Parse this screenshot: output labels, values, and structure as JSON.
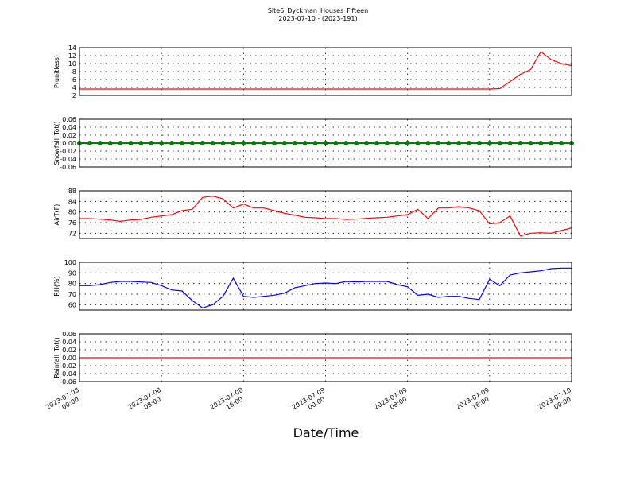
{
  "title": "Site6_Dyckman_Houses_Fifteen",
  "subtitle": "2023-07-10 - (2023-191)",
  "x_label": "Date/Time",
  "chart_data": [
    {
      "type": "line",
      "y_label": "P(unitless)",
      "grid": true,
      "x": [
        "2023-07-08 00:00",
        "2023-07-08 01:00",
        "2023-07-08 02:00",
        "2023-07-08 03:00",
        "2023-07-08 04:00",
        "2023-07-08 05:00",
        "2023-07-08 06:00",
        "2023-07-08 07:00",
        "2023-07-08 08:00",
        "2023-07-08 09:00",
        "2023-07-08 10:00",
        "2023-07-08 11:00",
        "2023-07-08 12:00",
        "2023-07-08 13:00",
        "2023-07-08 14:00",
        "2023-07-08 15:00",
        "2023-07-08 16:00",
        "2023-07-08 17:00",
        "2023-07-08 18:00",
        "2023-07-08 19:00",
        "2023-07-08 20:00",
        "2023-07-08 21:00",
        "2023-07-08 22:00",
        "2023-07-08 23:00",
        "2023-07-09 00:00",
        "2023-07-09 01:00",
        "2023-07-09 02:00",
        "2023-07-09 03:00",
        "2023-07-09 04:00",
        "2023-07-09 05:00",
        "2023-07-09 06:00",
        "2023-07-09 07:00",
        "2023-07-09 08:00",
        "2023-07-09 09:00",
        "2023-07-09 10:00",
        "2023-07-09 11:00",
        "2023-07-09 12:00",
        "2023-07-09 13:00",
        "2023-07-09 14:00",
        "2023-07-09 15:00",
        "2023-07-09 16:00",
        "2023-07-09 17:00",
        "2023-07-09 18:00",
        "2023-07-09 19:00",
        "2023-07-09 20:00",
        "2023-07-09 21:00",
        "2023-07-09 22:00",
        "2023-07-09 23:00",
        "2023-07-10 00:00"
      ],
      "xlim": [
        "2023-07-08 00:00",
        "2023-07-10 00:00"
      ],
      "xticks": [
        "2023-07-08 00:00",
        "2023-07-08 08:00",
        "2023-07-08 16:00",
        "2023-07-09 00:00",
        "2023-07-09 08:00",
        "2023-07-09 16:00",
        "2023-07-10 00:00"
      ],
      "ylim": [
        2,
        14
      ],
      "yticks": [
        2,
        4,
        6,
        8,
        10,
        12,
        14
      ],
      "series": [
        {
          "color": "#ff0000",
          "values": [
            3.6,
            3.6,
            3.6,
            3.6,
            3.6,
            3.6,
            3.6,
            3.6,
            3.6,
            3.6,
            3.6,
            3.6,
            3.6,
            3.6,
            3.6,
            3.6,
            3.6,
            3.6,
            3.6,
            3.6,
            3.6,
            3.6,
            3.6,
            3.6,
            3.6,
            3.6,
            3.6,
            3.6,
            3.6,
            3.6,
            3.6,
            3.6,
            3.6,
            3.6,
            3.6,
            3.6,
            3.6,
            3.6,
            3.6,
            3.6,
            3.6,
            3.7,
            5.5,
            7.3,
            8.5,
            13,
            11,
            10,
            9.5
          ]
        }
      ]
    },
    {
      "type": "line",
      "y_label": "Snowfall_Tot()",
      "grid": true,
      "x": [
        "2023-07-08 00:00",
        "2023-07-08 01:00",
        "2023-07-08 02:00",
        "2023-07-08 03:00",
        "2023-07-08 04:00",
        "2023-07-08 05:00",
        "2023-07-08 06:00",
        "2023-07-08 07:00",
        "2023-07-08 08:00",
        "2023-07-08 09:00",
        "2023-07-08 10:00",
        "2023-07-08 11:00",
        "2023-07-08 12:00",
        "2023-07-08 13:00",
        "2023-07-08 14:00",
        "2023-07-08 15:00",
        "2023-07-08 16:00",
        "2023-07-08 17:00",
        "2023-07-08 18:00",
        "2023-07-08 19:00",
        "2023-07-08 20:00",
        "2023-07-08 21:00",
        "2023-07-08 22:00",
        "2023-07-08 23:00",
        "2023-07-09 00:00",
        "2023-07-09 01:00",
        "2023-07-09 02:00",
        "2023-07-09 03:00",
        "2023-07-09 04:00",
        "2023-07-09 05:00",
        "2023-07-09 06:00",
        "2023-07-09 07:00",
        "2023-07-09 08:00",
        "2023-07-09 09:00",
        "2023-07-09 10:00",
        "2023-07-09 11:00",
        "2023-07-09 12:00",
        "2023-07-09 13:00",
        "2023-07-09 14:00",
        "2023-07-09 15:00",
        "2023-07-09 16:00",
        "2023-07-09 17:00",
        "2023-07-09 18:00",
        "2023-07-09 19:00",
        "2023-07-09 20:00",
        "2023-07-09 21:00",
        "2023-07-09 22:00",
        "2023-07-09 23:00",
        "2023-07-10 00:00"
      ],
      "xlim": [
        "2023-07-08 00:00",
        "2023-07-10 00:00"
      ],
      "xticks": [
        "2023-07-08 00:00",
        "2023-07-08 08:00",
        "2023-07-08 16:00",
        "2023-07-09 00:00",
        "2023-07-09 08:00",
        "2023-07-09 16:00",
        "2023-07-10 00:00"
      ],
      "ylim": [
        -0.06,
        0.06
      ],
      "yticks": [
        -0.06,
        -0.04,
        -0.02,
        {
          "value": 0,
          "label": "0.00"
        },
        0.02,
        0.04,
        0.06
      ],
      "series": [
        {
          "color": "#008000",
          "marker": "o",
          "values": [
            0,
            0,
            0,
            0,
            0,
            0,
            0,
            0,
            0,
            0,
            0,
            0,
            0,
            0,
            0,
            0,
            0,
            0,
            0,
            0,
            0,
            0,
            0,
            0,
            0,
            0,
            0,
            0,
            0,
            0,
            0,
            0,
            0,
            0,
            0,
            0,
            0,
            0,
            0,
            0,
            0,
            0,
            0,
            0,
            0,
            0,
            0,
            0,
            0
          ]
        }
      ]
    },
    {
      "type": "line",
      "y_label": "AirT(F)",
      "grid": true,
      "x": [
        "2023-07-08 00:00",
        "2023-07-08 01:00",
        "2023-07-08 02:00",
        "2023-07-08 03:00",
        "2023-07-08 04:00",
        "2023-07-08 05:00",
        "2023-07-08 06:00",
        "2023-07-08 07:00",
        "2023-07-08 08:00",
        "2023-07-08 09:00",
        "2023-07-08 10:00",
        "2023-07-08 11:00",
        "2023-07-08 12:00",
        "2023-07-08 13:00",
        "2023-07-08 14:00",
        "2023-07-08 15:00",
        "2023-07-08 16:00",
        "2023-07-08 17:00",
        "2023-07-08 18:00",
        "2023-07-08 19:00",
        "2023-07-08 20:00",
        "2023-07-08 21:00",
        "2023-07-08 22:00",
        "2023-07-08 23:00",
        "2023-07-09 00:00",
        "2023-07-09 01:00",
        "2023-07-09 02:00",
        "2023-07-09 03:00",
        "2023-07-09 04:00",
        "2023-07-09 05:00",
        "2023-07-09 06:00",
        "2023-07-09 07:00",
        "2023-07-09 08:00",
        "2023-07-09 09:00",
        "2023-07-09 10:00",
        "2023-07-09 11:00",
        "2023-07-09 12:00",
        "2023-07-09 13:00",
        "2023-07-09 14:00",
        "2023-07-09 15:00",
        "2023-07-09 16:00",
        "2023-07-09 17:00",
        "2023-07-09 18:00",
        "2023-07-09 19:00",
        "2023-07-09 20:00",
        "2023-07-09 21:00",
        "2023-07-09 22:00",
        "2023-07-09 23:00",
        "2023-07-10 00:00"
      ],
      "xlim": [
        "2023-07-08 00:00",
        "2023-07-10 00:00"
      ],
      "xticks": [
        "2023-07-08 00:00",
        "2023-07-08 08:00",
        "2023-07-08 16:00",
        "2023-07-09 00:00",
        "2023-07-09 08:00",
        "2023-07-09 16:00",
        "2023-07-10 00:00"
      ],
      "ylim": [
        70,
        88
      ],
      "yticks": [
        72,
        76,
        80,
        84,
        88
      ],
      "series": [
        {
          "color": "#ff0000",
          "values": [
            77.5,
            77.5,
            77.3,
            77,
            76.5,
            77,
            77.2,
            78,
            78.5,
            79,
            80.5,
            81,
            85.5,
            86,
            85,
            81.5,
            83,
            81.5,
            81.5,
            80.5,
            79.5,
            78.8,
            78,
            77.8,
            77.5,
            77.5,
            77.2,
            77.3,
            77.6,
            77.8,
            78,
            78.5,
            79,
            81,
            77.5,
            81.5,
            81.5,
            82,
            81.5,
            80.5,
            75.5,
            76,
            78.5,
            71,
            72,
            72.2,
            72,
            73,
            74
          ]
        }
      ]
    },
    {
      "type": "line",
      "y_label": "RH(%)",
      "grid": true,
      "x": [
        "2023-07-08 00:00",
        "2023-07-08 01:00",
        "2023-07-08 02:00",
        "2023-07-08 03:00",
        "2023-07-08 04:00",
        "2023-07-08 05:00",
        "2023-07-08 06:00",
        "2023-07-08 07:00",
        "2023-07-08 08:00",
        "2023-07-08 09:00",
        "2023-07-08 10:00",
        "2023-07-08 11:00",
        "2023-07-08 12:00",
        "2023-07-08 13:00",
        "2023-07-08 14:00",
        "2023-07-08 15:00",
        "2023-07-08 16:00",
        "2023-07-08 17:00",
        "2023-07-08 18:00",
        "2023-07-08 19:00",
        "2023-07-08 20:00",
        "2023-07-08 21:00",
        "2023-07-08 22:00",
        "2023-07-08 23:00",
        "2023-07-09 00:00",
        "2023-07-09 01:00",
        "2023-07-09 02:00",
        "2023-07-09 03:00",
        "2023-07-09 04:00",
        "2023-07-09 05:00",
        "2023-07-09 06:00",
        "2023-07-09 07:00",
        "2023-07-09 08:00",
        "2023-07-09 09:00",
        "2023-07-09 10:00",
        "2023-07-09 11:00",
        "2023-07-09 12:00",
        "2023-07-09 13:00",
        "2023-07-09 14:00",
        "2023-07-09 15:00",
        "2023-07-09 16:00",
        "2023-07-09 17:00",
        "2023-07-09 18:00",
        "2023-07-09 19:00",
        "2023-07-09 20:00",
        "2023-07-09 21:00",
        "2023-07-09 22:00",
        "2023-07-09 23:00",
        "2023-07-10 00:00"
      ],
      "xlim": [
        "2023-07-08 00:00",
        "2023-07-10 00:00"
      ],
      "xticks": [
        "2023-07-08 00:00",
        "2023-07-08 08:00",
        "2023-07-08 16:00",
        "2023-07-09 00:00",
        "2023-07-09 08:00",
        "2023-07-09 16:00",
        "2023-07-10 00:00"
      ],
      "ylim": [
        55,
        100
      ],
      "yticks": [
        60,
        70,
        80,
        90,
        100
      ],
      "series": [
        {
          "color": "#0000ff",
          "values": [
            78,
            78,
            79,
            81,
            82,
            82,
            81.5,
            81,
            78,
            74,
            73,
            64,
            57,
            60,
            68,
            85,
            68,
            67,
            68,
            69,
            71,
            76,
            78,
            80,
            80.5,
            80,
            82,
            81.5,
            82,
            82,
            82,
            79,
            77,
            69,
            70,
            67,
            68,
            68,
            66,
            65,
            84,
            78,
            88,
            90,
            91,
            92,
            94,
            94.5,
            94.5
          ]
        }
      ]
    },
    {
      "type": "line",
      "y_label": "Rainfall_Tot()",
      "grid": true,
      "x": [
        "2023-07-08 00:00",
        "2023-07-08 01:00",
        "2023-07-08 02:00",
        "2023-07-08 03:00",
        "2023-07-08 04:00",
        "2023-07-08 05:00",
        "2023-07-08 06:00",
        "2023-07-08 07:00",
        "2023-07-08 08:00",
        "2023-07-08 09:00",
        "2023-07-08 10:00",
        "2023-07-08 11:00",
        "2023-07-08 12:00",
        "2023-07-08 13:00",
        "2023-07-08 14:00",
        "2023-07-08 15:00",
        "2023-07-08 16:00",
        "2023-07-08 17:00",
        "2023-07-08 18:00",
        "2023-07-08 19:00",
        "2023-07-08 20:00",
        "2023-07-08 21:00",
        "2023-07-08 22:00",
        "2023-07-08 23:00",
        "2023-07-09 00:00",
        "2023-07-09 01:00",
        "2023-07-09 02:00",
        "2023-07-09 03:00",
        "2023-07-09 04:00",
        "2023-07-09 05:00",
        "2023-07-09 06:00",
        "2023-07-09 07:00",
        "2023-07-09 08:00",
        "2023-07-09 09:00",
        "2023-07-09 10:00",
        "2023-07-09 11:00",
        "2023-07-09 12:00",
        "2023-07-09 13:00",
        "2023-07-09 14:00",
        "2023-07-09 15:00",
        "2023-07-09 16:00",
        "2023-07-09 17:00",
        "2023-07-09 18:00",
        "2023-07-09 19:00",
        "2023-07-09 20:00",
        "2023-07-09 21:00",
        "2023-07-09 22:00",
        "2023-07-09 23:00",
        "2023-07-10 00:00"
      ],
      "xlim": [
        "2023-07-08 00:00",
        "2023-07-10 00:00"
      ],
      "xticks": [
        "2023-07-08 00:00",
        "2023-07-08 08:00",
        "2023-07-08 16:00",
        "2023-07-09 00:00",
        "2023-07-09 08:00",
        "2023-07-09 16:00",
        "2023-07-10 00:00"
      ],
      "x_tick_labels": true,
      "ylim": [
        -0.06,
        0.06
      ],
      "yticks": [
        -0.06,
        -0.04,
        -0.02,
        {
          "value": 0,
          "label": "0.00"
        },
        0.02,
        0.04,
        0.06
      ],
      "series": [
        {
          "color": "#ff0000",
          "values": [
            0,
            0,
            0,
            0,
            0,
            0,
            0,
            0,
            0,
            0,
            0,
            0,
            0,
            0,
            0,
            0,
            0,
            0,
            0,
            0,
            0,
            0,
            0,
            0,
            0,
            0,
            0,
            0,
            0,
            0,
            0,
            0,
            0,
            0,
            0,
            0,
            0,
            0,
            0,
            0,
            0,
            0,
            0,
            0,
            0,
            0,
            0,
            0,
            0
          ]
        }
      ]
    }
  ]
}
